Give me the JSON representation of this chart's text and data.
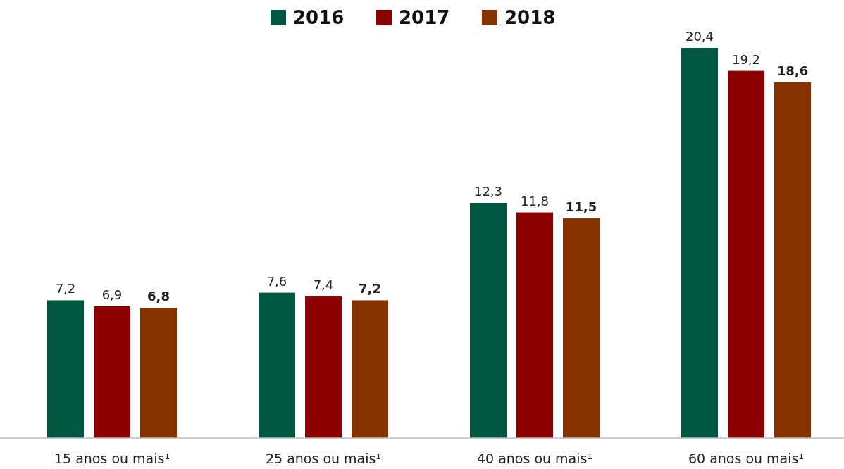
{
  "chart_data": {
    "type": "bar",
    "categories": [
      "15 anos ou mais¹",
      "25 anos ou mais¹",
      "40 anos ou mais¹",
      "60 anos ou mais¹"
    ],
    "series": [
      {
        "name": "2016",
        "color": "#00573f",
        "values": [
          7.2,
          7.6,
          12.3,
          20.4
        ],
        "value_labels": [
          "7,2",
          "7,6",
          "12,3",
          "20,4"
        ]
      },
      {
        "name": "2017",
        "color": "#8b0000",
        "values": [
          6.9,
          7.4,
          11.8,
          19.2
        ],
        "value_labels": [
          "6,9",
          "7,4",
          "11,8",
          "19,2"
        ]
      },
      {
        "name": "2018",
        "color": "#843300",
        "values": [
          6.8,
          7.2,
          11.5,
          18.6
        ],
        "value_labels": [
          "6,8",
          "7,2",
          "11,5",
          "18,6"
        ]
      }
    ],
    "legend": "top"
  }
}
